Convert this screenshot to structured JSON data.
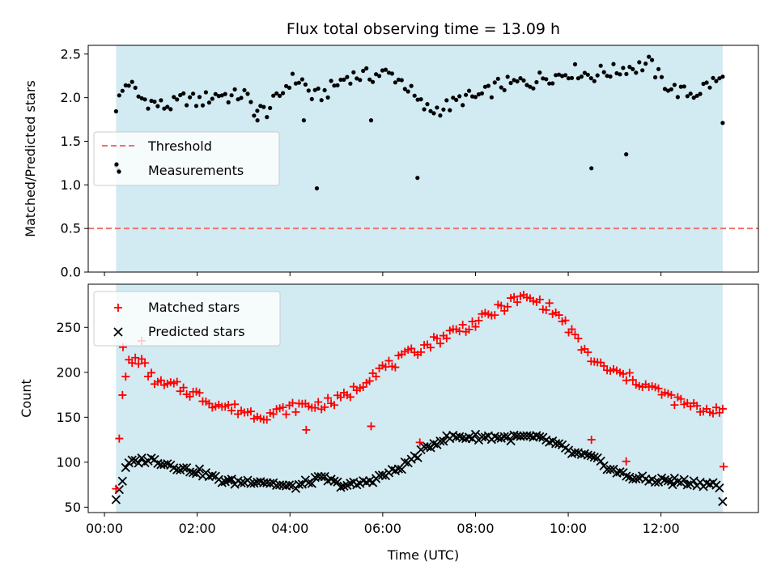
{
  "chart_data": [
    {
      "type": "scatter",
      "title": "Flux total observing time = 13.09 h",
      "ylabel": "Matched/Predicted stars",
      "xlim": [
        -0.35,
        14.1
      ],
      "ylim": [
        0.0,
        2.6
      ],
      "yticks": [
        "0.0",
        "0.5",
        "1.0",
        "1.5",
        "2.0",
        "2.5"
      ],
      "shaded_span": [
        0.25,
        13.33
      ],
      "shade_color": "#add8e6",
      "legend_position": "center-left",
      "threshold": {
        "name": "Threshold",
        "value": 0.5,
        "color": "#f07070"
      },
      "series": [
        {
          "name": "Measurements",
          "color": "#000000",
          "anchors_x": [
            0.25,
            0.5,
            0.75,
            1.0,
            1.25,
            1.5,
            1.75,
            2.0,
            2.25,
            2.5,
            2.75,
            3.0,
            3.25,
            3.5,
            3.75,
            4.0,
            4.25,
            4.5,
            4.75,
            5.0,
            5.25,
            5.5,
            5.75,
            6.0,
            6.25,
            6.5,
            6.75,
            7.0,
            7.25,
            7.5,
            7.75,
            8.0,
            8.25,
            8.5,
            8.75,
            9.0,
            9.25,
            9.5,
            9.75,
            10.0,
            10.25,
            10.5,
            10.75,
            11.0,
            11.25,
            11.5,
            11.75,
            12.0,
            12.25,
            12.5,
            12.75,
            13.0,
            13.25
          ],
          "anchors_y": [
            1.9,
            2.2,
            2.0,
            1.95,
            1.9,
            1.92,
            2.0,
            1.95,
            2.0,
            2.05,
            2.0,
            2.05,
            1.85,
            1.85,
            2.0,
            2.2,
            2.2,
            2.0,
            2.05,
            2.15,
            2.25,
            2.25,
            2.25,
            2.28,
            2.25,
            2.15,
            1.95,
            1.85,
            1.88,
            1.92,
            2.0,
            2.0,
            2.05,
            2.15,
            2.15,
            2.18,
            2.18,
            2.25,
            2.25,
            2.3,
            2.3,
            2.25,
            2.3,
            2.3,
            2.35,
            2.35,
            2.4,
            2.2,
            2.1,
            2.05,
            2.05,
            2.15,
            2.2
          ],
          "outliers": [
            [
              0.25,
              1.22
            ],
            [
              0.3,
              1.17
            ],
            [
              4.58,
              0.96
            ],
            [
              6.75,
              1.08
            ],
            [
              10.5,
              1.19
            ],
            [
              11.25,
              1.35
            ],
            [
              13.33,
              1.71
            ],
            [
              5.75,
              1.74
            ],
            [
              4.3,
              1.74
            ],
            [
              3.3,
              1.74
            ]
          ]
        }
      ]
    },
    {
      "type": "scatter",
      "ylabel": "Count",
      "xlabel": "Time (UTC)",
      "xlim": [
        -0.35,
        14.1
      ],
      "ylim": [
        44,
        298
      ],
      "yticks": [
        "50",
        "100",
        "150",
        "200",
        "250"
      ],
      "xticks": [
        "00:00",
        "02:00",
        "04:00",
        "06:00",
        "08:00",
        "10:00",
        "12:00"
      ],
      "shaded_span": [
        0.25,
        13.33
      ],
      "shade_color": "#add8e6",
      "legend_position": "upper-left",
      "series": [
        {
          "name": "Matched stars",
          "marker": "plus",
          "color": "#ff0000",
          "anchors_x": [
            0.25,
            0.35,
            0.5,
            0.75,
            1.0,
            1.25,
            1.5,
            1.75,
            2.0,
            2.25,
            2.5,
            2.75,
            3.0,
            3.25,
            3.5,
            3.75,
            4.0,
            4.25,
            4.5,
            4.75,
            5.0,
            5.25,
            5.5,
            5.75,
            6.0,
            6.25,
            6.5,
            6.75,
            7.0,
            7.25,
            7.5,
            7.75,
            8.0,
            8.25,
            8.5,
            8.75,
            9.0,
            9.25,
            9.5,
            9.75,
            10.0,
            10.25,
            10.5,
            10.75,
            11.0,
            11.25,
            11.5,
            11.75,
            12.0,
            12.25,
            12.5,
            12.75,
            13.0,
            13.25
          ],
          "anchors_y": [
            75,
            156,
            210,
            215,
            195,
            185,
            185,
            180,
            175,
            168,
            163,
            160,
            157,
            153,
            153,
            156,
            160,
            163,
            163,
            165,
            168,
            175,
            185,
            198,
            205,
            210,
            218,
            225,
            232,
            238,
            245,
            250,
            255,
            262,
            270,
            278,
            283,
            280,
            275,
            265,
            250,
            230,
            215,
            205,
            200,
            195,
            190,
            183,
            178,
            170,
            165,
            160,
            158,
            160
          ],
          "outliers": [
            [
              0.4,
              228
            ],
            [
              0.8,
              235
            ],
            [
              4.35,
              136
            ],
            [
              5.75,
              140
            ],
            [
              6.8,
              122
            ],
            [
              10.5,
              125
            ],
            [
              11.25,
              101
            ],
            [
              13.35,
              95
            ]
          ]
        },
        {
          "name": "Predicted stars",
          "marker": "x",
          "color": "#000000",
          "anchors_x": [
            0.25,
            0.4,
            0.5,
            0.75,
            1.0,
            1.25,
            1.5,
            1.75,
            2.0,
            2.25,
            2.5,
            2.75,
            3.0,
            3.25,
            3.5,
            3.75,
            4.0,
            4.25,
            4.5,
            4.75,
            5.0,
            5.25,
            5.5,
            5.75,
            6.0,
            6.25,
            6.5,
            6.75,
            7.0,
            7.25,
            7.5,
            7.75,
            8.0,
            8.25,
            8.5,
            8.75,
            9.0,
            9.25,
            9.5,
            9.75,
            10.0,
            10.25,
            10.5,
            10.75,
            11.0,
            11.25,
            11.5,
            11.75,
            12.0,
            12.25,
            12.5,
            12.75,
            13.0,
            13.25,
            13.33
          ],
          "anchors_y": [
            60,
            82,
            98,
            102,
            103,
            100,
            96,
            92,
            90,
            85,
            80,
            78,
            78,
            80,
            78,
            75,
            72,
            75,
            80,
            82,
            76,
            74,
            76,
            80,
            85,
            90,
            98,
            108,
            118,
            125,
            128,
            128,
            128,
            128,
            128,
            127,
            128,
            127,
            125,
            120,
            112,
            108,
            105,
            98,
            90,
            85,
            82,
            80,
            80,
            80,
            78,
            77,
            76,
            75,
            55
          ],
          "outliers": [
            [
              12.25,
              75
            ]
          ]
        }
      ]
    }
  ]
}
